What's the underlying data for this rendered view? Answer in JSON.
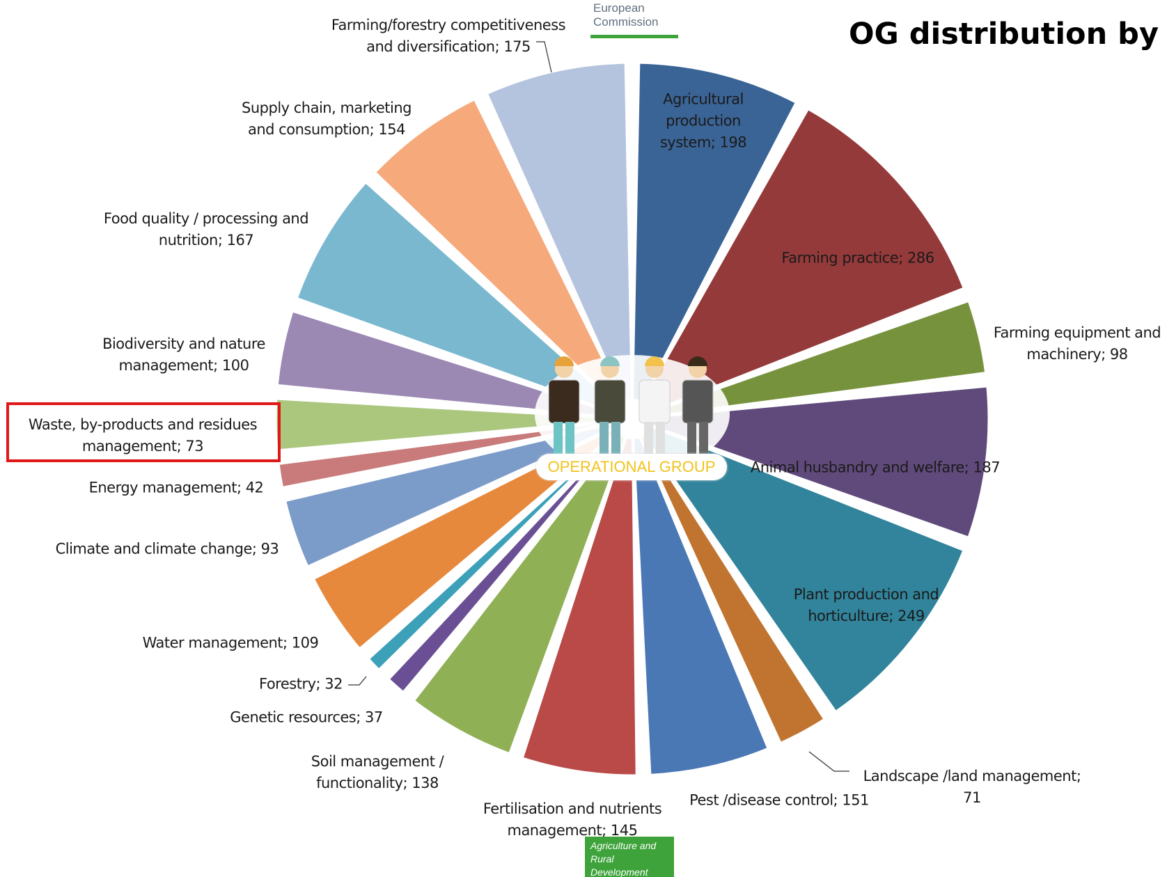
{
  "chart_data": {
    "type": "pie",
    "title": "OG distribution by",
    "categories": [
      "Agricultural production system; 198",
      "Farming practice; 286",
      "Farming equipment and machinery; 98",
      "Animal husbandry and welfare; 187",
      "Plant production and horticulture; 249",
      "Landscape /land  management; 71",
      "Pest /disease control; 151",
      "Fertilisation and nutrients management; 145",
      "Soil management / functionality; 138",
      "Genetic resources; 37",
      "Forestry; 32",
      "Water management; 109",
      "Climate and climate change; 93",
      "Energy management; 42",
      "Waste, by-products and residues management; 73",
      "Biodiversity and nature management; 100",
      "Food quality / processing and nutrition; 167",
      "Supply chain,  marketing and consumption; 154",
      "Farming/forestry competitiveness and diversification; 175"
    ],
    "values": [
      198,
      286,
      98,
      187,
      249,
      71,
      151,
      145,
      138,
      37,
      32,
      109,
      93,
      42,
      73,
      100,
      167,
      154,
      175
    ],
    "colors": [
      "#3a6496",
      "#953a3a",
      "#77923c",
      "#604a7b",
      "#31849b",
      "#c0742f",
      "#4a78b5",
      "#b94a48",
      "#8fb055",
      "#6a4f94",
      "#3ca0b8",
      "#e6893c",
      "#7b9bc8",
      "#c97a7a",
      "#abc77e",
      "#9b88b3",
      "#7ab8cf",
      "#f6a97b",
      "#b4c4de"
    ],
    "center_label": "OPERATIONAL GROUP"
  },
  "logos": {
    "top": "European Commission",
    "bottom": "Agriculture and Rural Development"
  }
}
